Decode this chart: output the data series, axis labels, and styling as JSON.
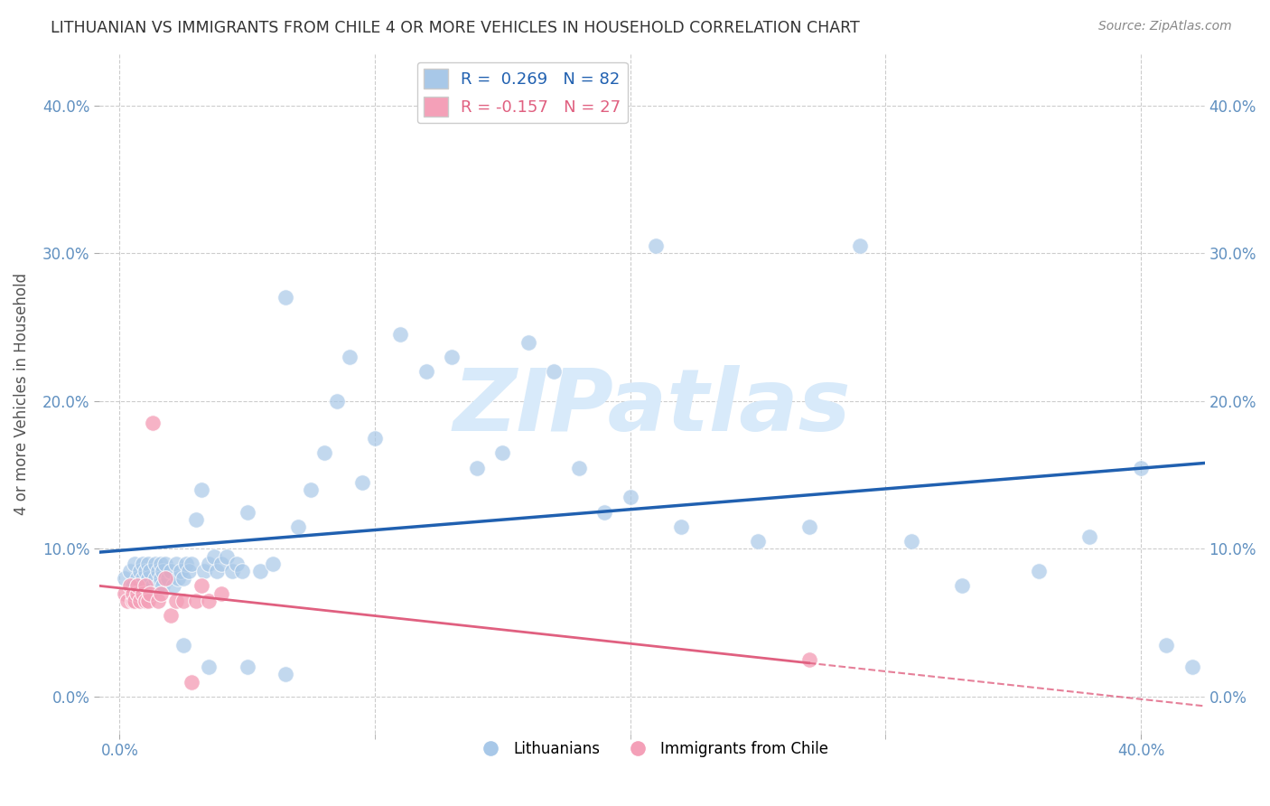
{
  "title": "LITHUANIAN VS IMMIGRANTS FROM CHILE 4 OR MORE VEHICLES IN HOUSEHOLD CORRELATION CHART",
  "source": "Source: ZipAtlas.com",
  "xlabel_ticks_show": [
    "0.0%",
    "40.0%"
  ],
  "xlabel_vals_show": [
    0.0,
    0.4
  ],
  "xlabel_minor_vals": [
    0.1,
    0.2,
    0.3
  ],
  "ylabel_ticks": [
    "0.0%",
    "10.0%",
    "20.0%",
    "30.0%",
    "40.0%"
  ],
  "ylabel_vals": [
    0.0,
    0.1,
    0.2,
    0.3,
    0.4
  ],
  "ylabel_label": "4 or more Vehicles in Household",
  "xlim": [
    -0.008,
    0.425
  ],
  "ylim": [
    -0.025,
    0.435
  ],
  "blue_R": 0.269,
  "blue_N": 82,
  "pink_R": -0.157,
  "pink_N": 27,
  "blue_color": "#A8C8E8",
  "pink_color": "#F4A0B8",
  "blue_line_color": "#2060B0",
  "pink_line_color": "#E06080",
  "watermark_color": "#D8EAFA",
  "background_color": "#FFFFFF",
  "blue_scatter_x": [
    0.002,
    0.004,
    0.005,
    0.006,
    0.007,
    0.008,
    0.008,
    0.009,
    0.009,
    0.01,
    0.01,
    0.011,
    0.011,
    0.012,
    0.013,
    0.014,
    0.014,
    0.015,
    0.015,
    0.016,
    0.016,
    0.017,
    0.017,
    0.018,
    0.019,
    0.02,
    0.021,
    0.022,
    0.023,
    0.024,
    0.025,
    0.026,
    0.027,
    0.028,
    0.03,
    0.032,
    0.033,
    0.035,
    0.037,
    0.038,
    0.04,
    0.042,
    0.044,
    0.046,
    0.048,
    0.05,
    0.055,
    0.06,
    0.065,
    0.07,
    0.075,
    0.08,
    0.085,
    0.09,
    0.095,
    0.1,
    0.11,
    0.12,
    0.13,
    0.14,
    0.15,
    0.16,
    0.17,
    0.18,
    0.19,
    0.2,
    0.21,
    0.22,
    0.25,
    0.27,
    0.29,
    0.31,
    0.33,
    0.36,
    0.38,
    0.4,
    0.41,
    0.42,
    0.025,
    0.035,
    0.05,
    0.065
  ],
  "blue_scatter_y": [
    0.08,
    0.085,
    0.075,
    0.09,
    0.08,
    0.085,
    0.075,
    0.09,
    0.08,
    0.085,
    0.075,
    0.09,
    0.08,
    0.085,
    0.075,
    0.09,
    0.08,
    0.085,
    0.075,
    0.09,
    0.08,
    0.085,
    0.075,
    0.09,
    0.08,
    0.085,
    0.075,
    0.09,
    0.08,
    0.085,
    0.08,
    0.09,
    0.085,
    0.09,
    0.12,
    0.14,
    0.085,
    0.09,
    0.095,
    0.085,
    0.09,
    0.095,
    0.085,
    0.09,
    0.085,
    0.125,
    0.085,
    0.09,
    0.27,
    0.115,
    0.14,
    0.165,
    0.2,
    0.23,
    0.145,
    0.175,
    0.245,
    0.22,
    0.23,
    0.155,
    0.165,
    0.24,
    0.22,
    0.155,
    0.125,
    0.135,
    0.305,
    0.115,
    0.105,
    0.115,
    0.305,
    0.105,
    0.075,
    0.085,
    0.108,
    0.155,
    0.035,
    0.02,
    0.035,
    0.02,
    0.02,
    0.015
  ],
  "pink_scatter_x": [
    0.002,
    0.003,
    0.004,
    0.005,
    0.005,
    0.006,
    0.007,
    0.007,
    0.008,
    0.009,
    0.01,
    0.01,
    0.011,
    0.012,
    0.013,
    0.015,
    0.016,
    0.018,
    0.02,
    0.022,
    0.025,
    0.028,
    0.03,
    0.032,
    0.035,
    0.04,
    0.27
  ],
  "pink_scatter_y": [
    0.07,
    0.065,
    0.075,
    0.065,
    0.07,
    0.065,
    0.07,
    0.075,
    0.065,
    0.07,
    0.065,
    0.075,
    0.065,
    0.07,
    0.185,
    0.065,
    0.07,
    0.08,
    0.055,
    0.065,
    0.065,
    0.01,
    0.065,
    0.075,
    0.065,
    0.07,
    0.025
  ],
  "legend_blue_label": "Lithuanians",
  "legend_pink_label": "Immigrants from Chile",
  "grid_color": "#CCCCCC",
  "title_color": "#333333",
  "axis_label_color": "#555555",
  "tick_color": "#6090C0"
}
